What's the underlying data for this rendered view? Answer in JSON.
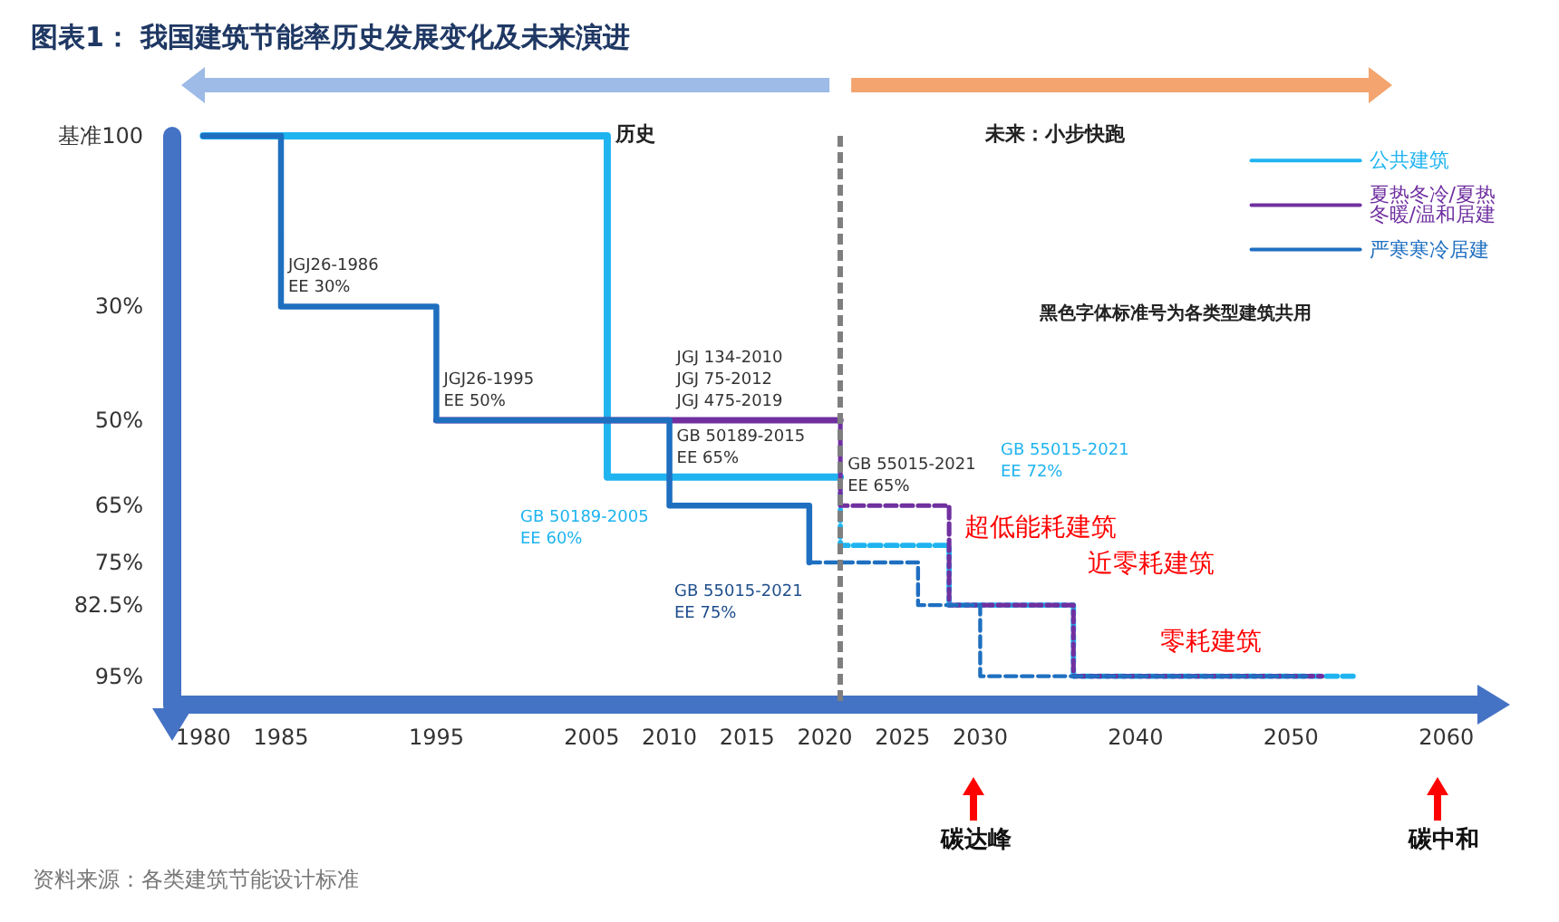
{
  "chart_data": {
    "type": "step",
    "title": "图表1： 我国建筑节能率历史发展变化及未来演进",
    "xlim": [
      1978,
      2062
    ],
    "xticks": [
      1980,
      1985,
      1995,
      2005,
      2010,
      2015,
      2020,
      2025,
      2030,
      2040,
      2050,
      2060
    ],
    "ylim": [
      100,
      0
    ],
    "yticks": [
      {
        "value": 0,
        "label": "基准100"
      },
      {
        "value": 30,
        "label": "30%"
      },
      {
        "value": 50,
        "label": "50%"
      },
      {
        "value": 65,
        "label": "65%"
      },
      {
        "value": 75,
        "label": "75%"
      },
      {
        "value": 82.5,
        "label": "82.5%"
      },
      {
        "value": 95,
        "label": "95%"
      }
    ],
    "series": [
      {
        "name": "公共建筑",
        "color": "#1fb4f0",
        "x": [
          1980,
          2006,
          2021
        ],
        "values": [
          0,
          60,
          60
        ]
      },
      {
        "name": "夏热冬冷/夏热冬暖/温和居建",
        "color": "#7030a0",
        "x": [
          1995,
          2021
        ],
        "values": [
          50,
          50
        ]
      },
      {
        "name": "严寒寒冷居建",
        "color": "#1f6fc0",
        "x": [
          1980,
          1985,
          1995,
          2010,
          2019
        ],
        "values": [
          0,
          30,
          50,
          65,
          75
        ]
      },
      {
        "color": "#1fb4f0",
        "line_style": "dashed",
        "x": [
          2021,
          2021,
          2028,
          2036,
          2054
        ],
        "values": [
          60,
          72,
          82.5,
          95,
          95
        ]
      },
      {
        "color": "#7030a0",
        "line_style": "dashed",
        "x": [
          2021,
          2021,
          2028,
          2036,
          2052
        ],
        "values": [
          50,
          65,
          82.5,
          95,
          95
        ]
      },
      {
        "color": "#1f6fc0",
        "line_style": "dashed",
        "x": [
          2019,
          2026,
          2030,
          2051
        ],
        "values": [
          75,
          82.5,
          95,
          95
        ]
      }
    ],
    "ref_lines": [
      {
        "axis": "x",
        "value": 2021,
        "color": "#7f7f7f",
        "line_style": "dashed"
      }
    ],
    "annotations": [
      "历史",
      "未来：小步快跑",
      "黑色字体标准号为各类型建筑共用",
      "GB 50189-2005\nEE 60%",
      "GB 55015-2021\nEE 75%",
      "GB 55015-2021\nEE 72%",
      "超低能耗建筑",
      "近零耗建筑",
      "零耗建筑",
      "碳达峰",
      "碳中和",
      {
        "text": "JGJ26-1986\nEE 30%",
        "x": 1985,
        "y": 30
      },
      {
        "text": "JGJ26-1995\nEE 50%",
        "x": 1995,
        "y": 50
      },
      {
        "text": "JGJ 134-2010\nJGJ 75-2012\nJGJ 475-2019",
        "x": 2010,
        "y": 50
      },
      {
        "text": "GB 50189-2015\nEE 65%",
        "x": 2010,
        "y": 60
      },
      {
        "text": "GB 55015-2021\nEE 65%",
        "x": 2021,
        "y": 65
      },
      "资料来源：各类建筑节能设计标准"
    ],
    "legend": "top right",
    "marker": "none",
    "grid": false
  }
}
